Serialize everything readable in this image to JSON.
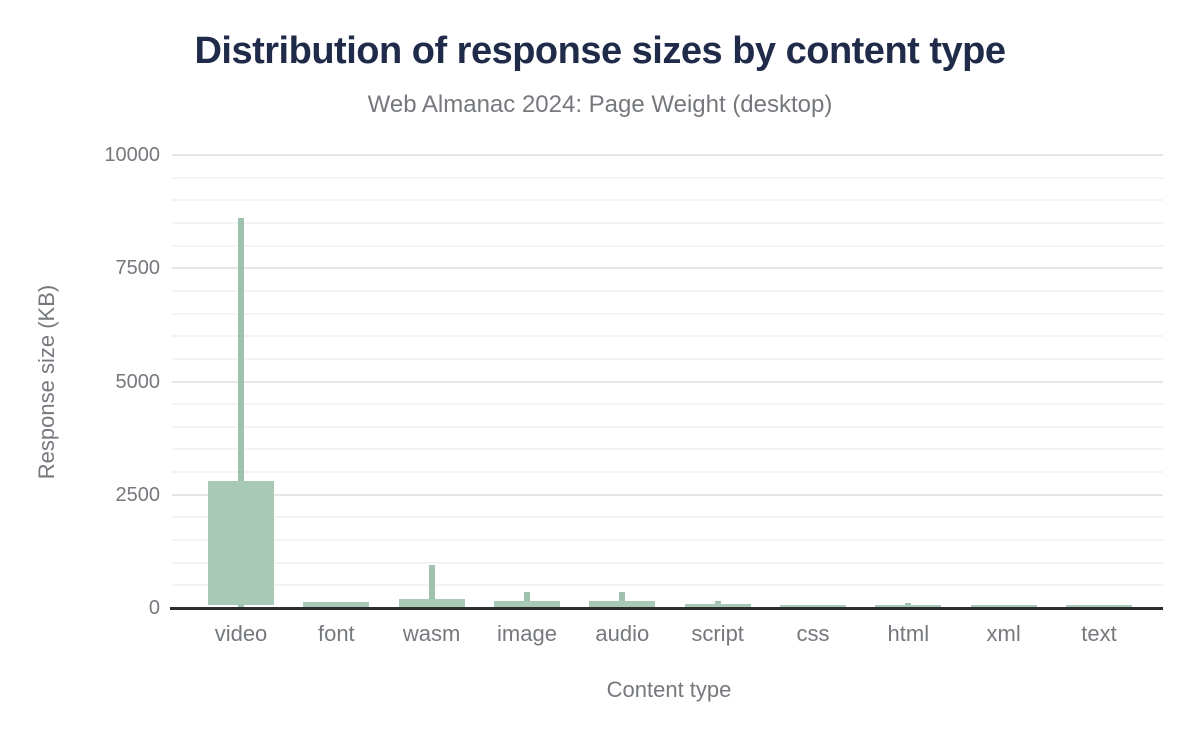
{
  "chart_data": {
    "type": "boxplot",
    "title": "Distribution of response sizes by content type",
    "subtitle": "Web Almanac 2024: Page Weight (desktop)",
    "xlabel": "Content type",
    "ylabel": "Response size (KB)",
    "categories": [
      "video",
      "font",
      "wasm",
      "image",
      "audio",
      "script",
      "css",
      "html",
      "xml",
      "text"
    ],
    "series": [
      {
        "name": "response-size-distribution-kb",
        "boxes": [
          {
            "category": "video",
            "p10": 0,
            "p25": 60,
            "p75": 2800,
            "p90": 8600
          },
          {
            "category": "font",
            "p10": 0,
            "p25": 0,
            "p75": 140,
            "p90": 140
          },
          {
            "category": "wasm",
            "p10": 0,
            "p25": 0,
            "p75": 190,
            "p90": 960
          },
          {
            "category": "image",
            "p10": 0,
            "p25": 0,
            "p75": 150,
            "p90": 345
          },
          {
            "category": "audio",
            "p10": 0,
            "p25": 0,
            "p75": 150,
            "p90": 355
          },
          {
            "category": "script",
            "p10": 0,
            "p25": 0,
            "p75": 85,
            "p90": 160
          },
          {
            "category": "css",
            "p10": 0,
            "p25": 0,
            "p75": 70,
            "p90": 70
          },
          {
            "category": "html",
            "p10": 0,
            "p25": 0,
            "p75": 70,
            "p90": 100
          },
          {
            "category": "xml",
            "p10": 0,
            "p25": 0,
            "p75": 70,
            "p90": 70
          },
          {
            "category": "text",
            "p10": 0,
            "p25": 0,
            "p75": 70,
            "p90": 70
          }
        ]
      }
    ],
    "ylim": [
      0,
      10000
    ],
    "yticks": [
      0,
      2500,
      5000,
      7500,
      10000
    ],
    "ytick_minor_step": 500,
    "grid": true,
    "legend": "none",
    "colors": {
      "bar": "#a7c9b6",
      "whisker": "#9fc2ae",
      "title": "#1f2b49",
      "axis_text": "#75787d",
      "baseline": "#2d2d2d",
      "gridline_major": "#e6e6e6",
      "gridline_minor": "#f4f4f4",
      "background": "#ffffff"
    }
  }
}
